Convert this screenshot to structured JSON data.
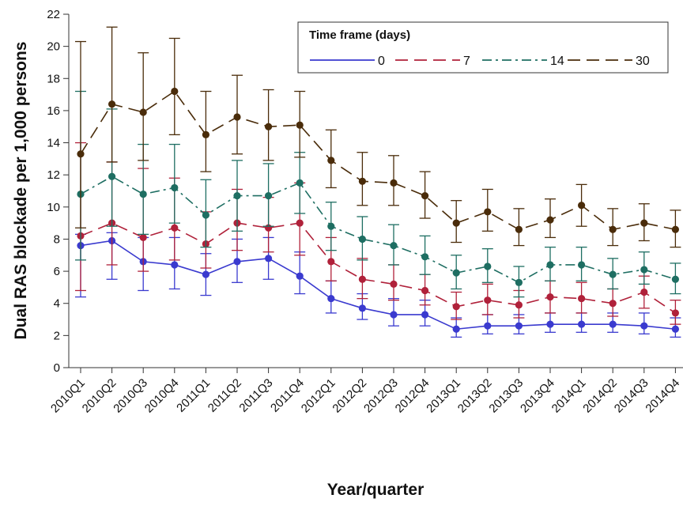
{
  "chart_data": {
    "type": "line",
    "xlabel": "Year/quarter",
    "ylabel": "Dual RAS blockade per 1,000 persons",
    "ylim": [
      0,
      22
    ],
    "yticks": [
      0,
      2,
      4,
      6,
      8,
      10,
      12,
      14,
      16,
      18,
      20,
      22
    ],
    "grid": false,
    "legend": {
      "title": "Time frame (days)",
      "placement": "top-right",
      "entries": [
        "0",
        "7",
        "14",
        "30"
      ]
    },
    "categories": [
      "2010Q1",
      "2010Q2",
      "2010Q3",
      "2010Q4",
      "2011Q1",
      "2011Q2",
      "2011Q3",
      "2011Q4",
      "2012Q1",
      "2012Q2",
      "2012Q3",
      "2012Q4",
      "2013Q1",
      "2013Q2",
      "2013Q3",
      "2013Q4",
      "2014Q1",
      "2014Q2",
      "2014Q3",
      "2014Q4"
    ],
    "series": [
      {
        "name": "0",
        "color": "#3a3acf",
        "dash": "solid",
        "values": [
          7.6,
          7.9,
          6.6,
          6.4,
          5.8,
          6.6,
          6.8,
          5.7,
          4.3,
          3.7,
          3.3,
          3.3,
          2.4,
          2.6,
          2.6,
          2.7,
          2.7,
          2.7,
          2.6,
          2.4
        ],
        "lower": [
          4.4,
          5.5,
          4.8,
          4.9,
          4.5,
          5.3,
          5.5,
          4.6,
          3.4,
          3.0,
          2.6,
          2.6,
          1.9,
          2.1,
          2.1,
          2.2,
          2.2,
          2.2,
          2.1,
          1.9
        ],
        "upper": [
          8.3,
          8.4,
          8.1,
          8.1,
          7.1,
          8.0,
          8.1,
          7.2,
          5.4,
          4.6,
          4.3,
          4.2,
          3.1,
          3.3,
          3.3,
          3.4,
          3.4,
          3.4,
          3.4,
          3.1
        ]
      },
      {
        "name": "7",
        "color": "#b0213a",
        "dash": "long-dash",
        "values": [
          8.2,
          9.0,
          8.1,
          8.7,
          7.7,
          9.0,
          8.7,
          9.0,
          6.6,
          5.5,
          5.2,
          4.8,
          3.8,
          4.2,
          3.9,
          4.4,
          4.3,
          4.0,
          4.7,
          3.4
        ],
        "lower": [
          4.8,
          6.4,
          6.0,
          6.7,
          6.2,
          7.3,
          7.2,
          7.0,
          5.4,
          4.3,
          4.2,
          3.9,
          3.0,
          3.3,
          3.1,
          3.4,
          3.4,
          3.2,
          3.7,
          2.7
        ],
        "upper": [
          14.0,
          12.8,
          12.4,
          11.8,
          9.7,
          11.1,
          10.6,
          11.5,
          8.1,
          6.8,
          6.4,
          5.8,
          4.7,
          5.2,
          4.8,
          5.4,
          5.3,
          4.9,
          5.7,
          4.2
        ]
      },
      {
        "name": "14",
        "color": "#1e6e62",
        "dash": "dash-dot",
        "values": [
          10.8,
          11.9,
          10.8,
          11.2,
          9.5,
          10.7,
          10.7,
          11.5,
          8.8,
          8.0,
          7.6,
          6.9,
          5.9,
          6.3,
          5.3,
          6.4,
          6.4,
          5.8,
          6.1,
          5.5
        ],
        "lower": [
          6.7,
          8.8,
          8.3,
          9.0,
          7.5,
          8.5,
          8.8,
          9.6,
          7.3,
          6.7,
          6.4,
          5.8,
          4.9,
          5.3,
          4.4,
          5.4,
          5.4,
          4.9,
          5.2,
          4.6
        ],
        "upper": [
          17.2,
          16.1,
          13.9,
          13.9,
          11.7,
          12.9,
          12.7,
          13.4,
          10.3,
          9.4,
          8.9,
          8.2,
          7.0,
          7.4,
          6.3,
          7.5,
          7.5,
          6.8,
          7.2,
          6.5
        ]
      },
      {
        "name": "30",
        "color": "#4a2c0a",
        "dash": "long-dash",
        "values": [
          13.3,
          16.4,
          15.9,
          17.2,
          14.5,
          15.6,
          15.0,
          15.1,
          12.9,
          11.6,
          11.5,
          10.7,
          9.0,
          9.7,
          8.6,
          9.2,
          10.1,
          8.6,
          9.0,
          8.6
        ],
        "lower": [
          8.7,
          12.8,
          12.9,
          14.5,
          12.2,
          13.3,
          12.9,
          13.1,
          11.2,
          10.1,
          10.1,
          9.3,
          7.8,
          8.5,
          7.6,
          8.1,
          8.8,
          7.6,
          7.9,
          7.5
        ],
        "upper": [
          20.3,
          21.2,
          19.6,
          20.5,
          17.2,
          18.2,
          17.3,
          17.2,
          14.8,
          13.4,
          13.2,
          12.2,
          10.4,
          11.1,
          9.9,
          10.5,
          11.4,
          9.9,
          10.2,
          9.8
        ]
      }
    ]
  }
}
